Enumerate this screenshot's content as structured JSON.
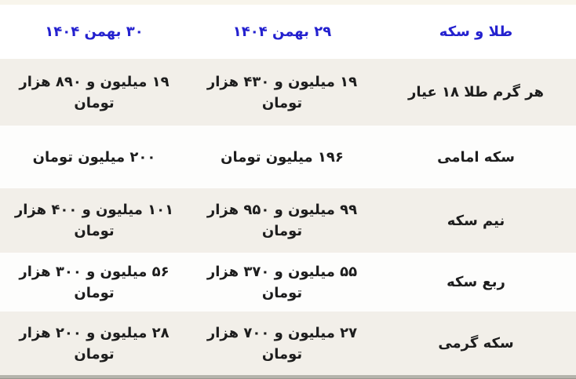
{
  "chart_data": {
    "type": "table",
    "direction": "rtl",
    "title": "طلا و سکه",
    "columns": [
      "طلا و سکه",
      "۲۹ بهمن ۱۴۰۴",
      "۳۰ بهمن ۱۴۰۴"
    ],
    "rows": [
      [
        "هر گرم طلا ۱۸ عیار",
        "۱۹ میلیون و ۴۳۰ هزار تومان",
        "۱۹ میلیون و ۸۹۰ هزار تومان"
      ],
      [
        "سکه امامی",
        "۱۹۶ میلیون تومان",
        "۲۰۰ میلیون تومان"
      ],
      [
        "نیم سکه",
        "۹۹ میلیون و ۹۵۰ هزار تومان",
        "۱۰۱ میلیون و ۴۰۰ هزار تومان"
      ],
      [
        "ربع سکه",
        "۵۵ میلیون و ۳۷۰ هزار تومان",
        "۵۶ میلیون و ۳۰۰ هزار تومان"
      ],
      [
        "سکه گرمی",
        "۲۷ میلیون و ۷۰۰ هزار تومان",
        "۲۸ میلیون و ۲۰۰ هزار تومان"
      ]
    ],
    "layout": {
      "header_position": "top",
      "column_order_visual": "right-to-left",
      "alternating_row_shading": true
    }
  },
  "colors": {
    "header_text": "#2421cf",
    "body_text": "#1d1d1d",
    "row_shaded_bg": "#f2efe9",
    "row_plain_bg": "#fdfdfc",
    "top_strip_bg": "#f8f5ec",
    "bottom_strip_bg": "#b5b4ac"
  }
}
